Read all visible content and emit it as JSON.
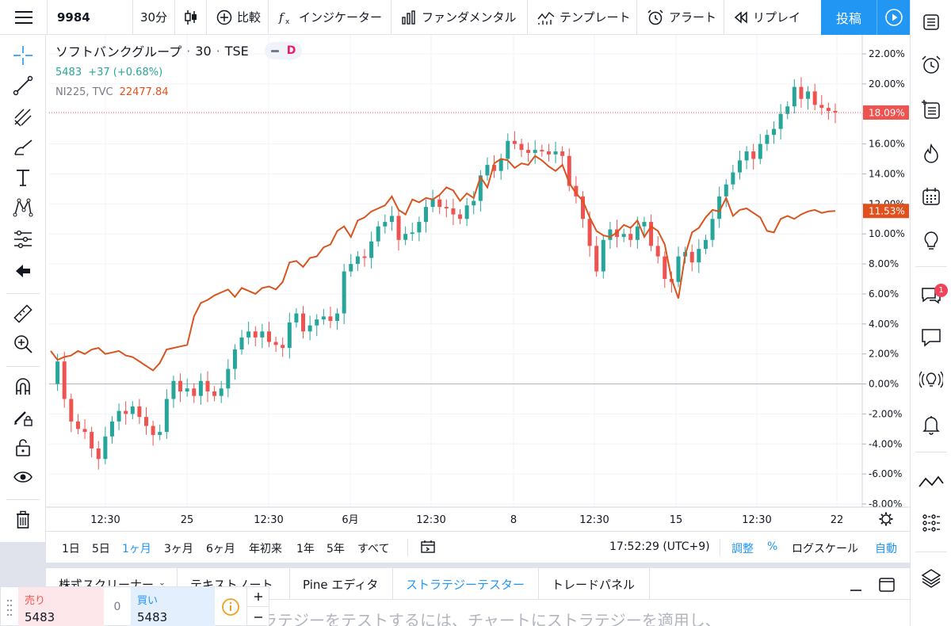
{
  "toolbar": {
    "symbol": "9984",
    "interval": "30分",
    "compare": "比較",
    "indicators": "インジケーター",
    "fundamentals": "ファンダメンタル",
    "templates": "テンプレート",
    "alert": "アラート",
    "replay": "リプレイ",
    "publish": "投稿"
  },
  "legend": {
    "name": "ソフトバンクグループ",
    "interval": "30",
    "exchange": "TSE",
    "pill_label": "D",
    "price": "5483",
    "change": "+37 (+0.68%)",
    "compare_symbol": "NI225, TVC",
    "compare_value": "22477.84"
  },
  "chart_data": {
    "type": "line",
    "y_axis_ticks": [
      "22.00%",
      "20.00%",
      "18.00%",
      "16.00%",
      "14.00%",
      "12.00%",
      "10.00%",
      "8.00%",
      "6.00%",
      "4.00%",
      "2.00%",
      "0.00%",
      "-2.00%",
      "-4.00%",
      "-6.00%",
      "-8.00%"
    ],
    "y_range": [
      -8,
      22
    ],
    "x_axis_ticks": [
      "12:30",
      "25",
      "12:30",
      "6月",
      "12:30",
      "8",
      "12:30",
      "15",
      "12:30",
      "22"
    ],
    "main_last_label": "18.09%",
    "main_last_value": 18.09,
    "compare_last_label": "11.53%",
    "compare_last_value": 11.53,
    "baseline": 0,
    "series": [
      {
        "name": "NI225, TVC",
        "color": "#d9541e",
        "values": [
          2.2,
          1.6,
          1.8,
          1.9,
          2.2,
          2.0,
          2.3,
          2.4,
          2.0,
          2.1,
          2.2,
          1.9,
          1.8,
          1.5,
          1.2,
          0.9,
          1.4,
          2.3,
          2.4,
          2.5,
          2.6,
          4.5,
          5.4,
          5.6,
          5.9,
          6.1,
          6.3,
          5.8,
          6.4,
          6.2,
          6.0,
          6.4,
          6.5,
          6.3,
          6.8,
          8.1,
          8.2,
          7.8,
          8.4,
          8.5,
          9.1,
          9.3,
          10.2,
          10.5,
          9.8,
          10.9,
          11.1,
          11.5,
          11.7,
          11.9,
          12.5,
          11.6,
          11.3,
          12.3,
          12.1,
          12.4,
          12.3,
          12.6,
          13.1,
          12.9,
          12.2,
          12.7,
          12.4,
          13.8,
          13.1,
          14.7,
          15.0,
          14.9,
          14.4,
          14.7,
          14.6,
          15.2,
          14.9,
          14.5,
          14.2,
          14.6,
          13.4,
          12.7,
          12.2,
          11.1,
          10.2,
          9.9,
          9.8,
          10.1,
          10.6,
          10.4,
          10.9,
          9.8,
          10.5,
          10.2,
          9.3,
          7.0,
          5.7,
          8.6,
          10.1,
          10.4,
          11.1,
          11.6,
          11.5,
          12.4,
          11.2,
          11.6,
          11.7,
          11.4,
          11.1,
          10.2,
          10.1,
          11.0,
          11.2,
          11.0,
          11.3,
          11.5,
          11.6,
          11.4,
          11.5,
          11.53
        ]
      },
      {
        "name": "ソフトバンクグループ",
        "color": "#26a69a",
        "values": [
          0.0,
          1.5,
          -1.0,
          -2.5,
          -3.0,
          -3.2,
          -4.3,
          -5.0,
          -3.5,
          -2.5,
          -1.8,
          -2.0,
          -1.5,
          -2.2,
          -2.8,
          -3.4,
          -3.2,
          -1.0,
          0.2,
          -0.5,
          -0.3,
          -0.8,
          0.2,
          -0.5,
          -0.8,
          -0.3,
          1.0,
          2.3,
          3.1,
          3.5,
          3.1,
          3.5,
          2.8,
          2.6,
          2.4,
          4.1,
          4.7,
          3.5,
          3.9,
          4.3,
          4.5,
          4.2,
          4.7,
          7.5,
          8.0,
          8.5,
          8.4,
          9.5,
          10.5,
          10.8,
          11.2,
          9.6,
          10.0,
          10.1,
          10.8,
          11.8,
          12.3,
          11.8,
          11.7,
          11.3,
          11.0,
          11.9,
          12.2,
          13.9,
          14.6,
          14.2,
          15.0,
          16.2,
          16.0,
          15.6,
          15.4,
          15.6,
          15.5,
          15.3,
          15.5,
          15.2,
          13.2,
          12.5,
          11.0,
          9.2,
          7.5,
          9.6,
          10.3,
          9.8,
          10.0,
          9.6,
          10.5,
          10.8,
          9.2,
          8.5,
          7.0,
          6.8,
          8.5,
          8.8,
          8.1,
          9.0,
          9.6,
          11.0,
          12.5,
          13.3,
          14.1,
          14.9,
          15.5,
          15.0,
          16.0,
          16.6,
          17.0,
          18.0,
          18.5,
          19.8,
          19.0,
          19.5,
          18.6,
          18.4,
          18.2,
          18.09
        ]
      }
    ]
  },
  "range": {
    "items": [
      "1日",
      "5日",
      "1ヶ月",
      "3ヶ月",
      "6ヶ月",
      "年初来",
      "1年",
      "5年",
      "すべて"
    ],
    "time": "17:52:29 (UTC+9)",
    "adjust": "調整",
    "percent": "%",
    "log": "ログスケール",
    "auto": "自動"
  },
  "panels": {
    "tabs": [
      "株式スクリーナー",
      "テキストノート",
      "Pine エディタ",
      "ストラテジーテスター",
      "トレードパネル"
    ],
    "message": "ラテジーをテストするには、チャートにストラテジーを適用し、"
  },
  "trade": {
    "sell_label": "売り",
    "sell_price": "5483",
    "spread": "0",
    "buy_label": "買い",
    "buy_price": "5483"
  },
  "sidebar": {
    "chat_badge": "1"
  }
}
